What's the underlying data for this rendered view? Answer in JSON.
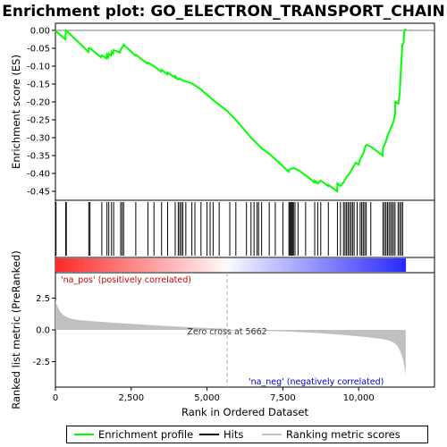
{
  "colors": {
    "enrichment": "#00ff00",
    "hits": "#000000",
    "metric_fill": "#c0c0c0",
    "pos_label": "#cc0000",
    "neg_label": "#0000cc",
    "zero_line": "#aaaaaa"
  },
  "chart_data": {
    "type": "line",
    "title": "Enrichment plot: GO_ELECTRON_TRANSPORT_CHAIN",
    "xlabel": "Rank in Ordered Dataset",
    "ylabel_top": "Enrichment score (ES)",
    "ylabel_bottom": "Ranked list metric (PreRanked)",
    "xlim": [
      0,
      12500
    ],
    "es_ylim": [
      -0.475,
      0.02
    ],
    "metric_ylim": [
      -4.5,
      4.5
    ],
    "n_genes": 11550,
    "x_ticks": [
      0,
      2500,
      5000,
      7500,
      10000
    ],
    "x_tick_labels": [
      "0",
      "2,500",
      "5,000",
      "7,500",
      "10,000"
    ],
    "es_ticks": [
      0.0,
      -0.05,
      -0.1,
      -0.15,
      -0.2,
      -0.25,
      -0.3,
      -0.35,
      -0.4,
      -0.45
    ],
    "es_tick_labels": [
      "0.00",
      "-0.05",
      "-0.10",
      "-0.15",
      "-0.20",
      "-0.25",
      "-0.30",
      "-0.35",
      "-0.40",
      "-0.45"
    ],
    "metric_ticks": [
      2.5,
      0,
      -2.5
    ],
    "metric_tick_labels": [
      "2.5",
      "0.0",
      "-2.5"
    ],
    "zero_cross_rank": 5662,
    "zero_cross_label": "Zero cross at 5662",
    "pos_label": "'na_pos' (positively correlated)",
    "neg_label": "'na_neg' (negatively correlated)",
    "hits": [
      20,
      340,
      360,
      1100,
      1140,
      1530,
      1700,
      1760,
      1850,
      1920,
      2150,
      2200,
      2250,
      2650,
      3050,
      3250,
      3500,
      3700,
      3950,
      4050,
      4100,
      4150,
      4200,
      4300,
      4500,
      4600,
      4800,
      5000,
      5100,
      5200,
      5400,
      5750,
      5950,
      6300,
      6450,
      6550,
      6650,
      6700,
      6800,
      7050,
      7250,
      7500,
      7700,
      7730,
      7760,
      7790,
      7820,
      7850,
      7900,
      8000,
      8250,
      8550,
      8650,
      8750,
      9000,
      9300,
      9400,
      9500,
      9550,
      9600,
      9650,
      9700,
      9750,
      9800,
      9850,
      9950,
      10050,
      10100,
      10150,
      10200,
      10250,
      10400,
      10800,
      10850,
      10900,
      10950,
      11000,
      11050,
      11100,
      11150,
      11200,
      11300,
      11350,
      11400,
      11450
    ],
    "series": [
      {
        "values": [
          [
            0,
            0.0
          ],
          [
            10,
            -0.002
          ],
          [
            330,
            -0.025
          ],
          [
            340,
            -0.002
          ],
          [
            350,
            -0.0
          ],
          [
            1090,
            -0.06
          ],
          [
            1100,
            -0.05
          ],
          [
            1140,
            -0.05
          ],
          [
            1500,
            -0.075
          ],
          [
            1530,
            -0.07
          ],
          [
            1680,
            -0.078
          ],
          [
            1700,
            -0.068
          ],
          [
            1740,
            -0.075
          ],
          [
            1760,
            -0.065
          ],
          [
            1830,
            -0.07
          ],
          [
            1850,
            -0.06
          ],
          [
            1900,
            -0.065
          ],
          [
            1920,
            -0.055
          ],
          [
            2130,
            -0.062
          ],
          [
            2150,
            -0.053
          ],
          [
            2200,
            -0.048
          ],
          [
            2230,
            -0.045
          ],
          [
            2250,
            -0.04
          ],
          [
            2630,
            -0.07
          ],
          [
            2650,
            -0.068
          ],
          [
            3030,
            -0.093
          ],
          [
            3050,
            -0.09
          ],
          [
            3250,
            -0.1
          ],
          [
            3480,
            -0.115
          ],
          [
            3500,
            -0.11
          ],
          [
            3690,
            -0.123
          ],
          [
            3700,
            -0.118
          ],
          [
            3940,
            -0.132
          ],
          [
            3950,
            -0.128
          ],
          [
            4030,
            -0.137
          ],
          [
            4100,
            -0.135
          ],
          [
            4200,
            -0.14
          ],
          [
            4500,
            -0.148
          ],
          [
            4800,
            -0.165
          ],
          [
            5000,
            -0.18
          ],
          [
            5200,
            -0.195
          ],
          [
            5662,
            -0.225
          ],
          [
            6000,
            -0.255
          ],
          [
            6300,
            -0.285
          ],
          [
            6450,
            -0.3
          ],
          [
            6800,
            -0.33
          ],
          [
            7050,
            -0.345
          ],
          [
            7250,
            -0.36
          ],
          [
            7500,
            -0.38
          ],
          [
            7690,
            -0.395
          ],
          [
            7700,
            -0.39
          ],
          [
            7850,
            -0.385
          ],
          [
            8000,
            -0.39
          ],
          [
            8250,
            -0.405
          ],
          [
            8540,
            -0.425
          ],
          [
            8550,
            -0.42
          ],
          [
            8650,
            -0.428
          ],
          [
            8750,
            -0.42
          ],
          [
            8990,
            -0.435
          ],
          [
            9000,
            -0.432
          ],
          [
            9290,
            -0.45
          ],
          [
            9300,
            -0.428
          ],
          [
            9400,
            -0.435
          ],
          [
            9500,
            -0.425
          ],
          [
            9600,
            -0.41
          ],
          [
            9700,
            -0.4
          ],
          [
            9800,
            -0.385
          ],
          [
            9900,
            -0.37
          ],
          [
            10000,
            -0.375
          ],
          [
            10050,
            -0.36
          ],
          [
            10150,
            -0.345
          ],
          [
            10200,
            -0.33
          ],
          [
            10250,
            -0.32
          ],
          [
            10400,
            -0.325
          ],
          [
            10790,
            -0.35
          ],
          [
            10800,
            -0.33
          ],
          [
            10900,
            -0.31
          ],
          [
            10950,
            -0.295
          ],
          [
            11050,
            -0.275
          ],
          [
            11150,
            -0.255
          ],
          [
            11200,
            -0.235
          ],
          [
            11210,
            -0.2
          ],
          [
            11300,
            -0.205
          ],
          [
            11350,
            -0.18
          ],
          [
            11400,
            -0.1
          ],
          [
            11420,
            -0.07
          ],
          [
            11440,
            -0.04
          ],
          [
            11480,
            -0.035
          ],
          [
            11500,
            -0.005
          ],
          [
            11550,
            0.005
          ]
        ]
      }
    ]
  }
}
